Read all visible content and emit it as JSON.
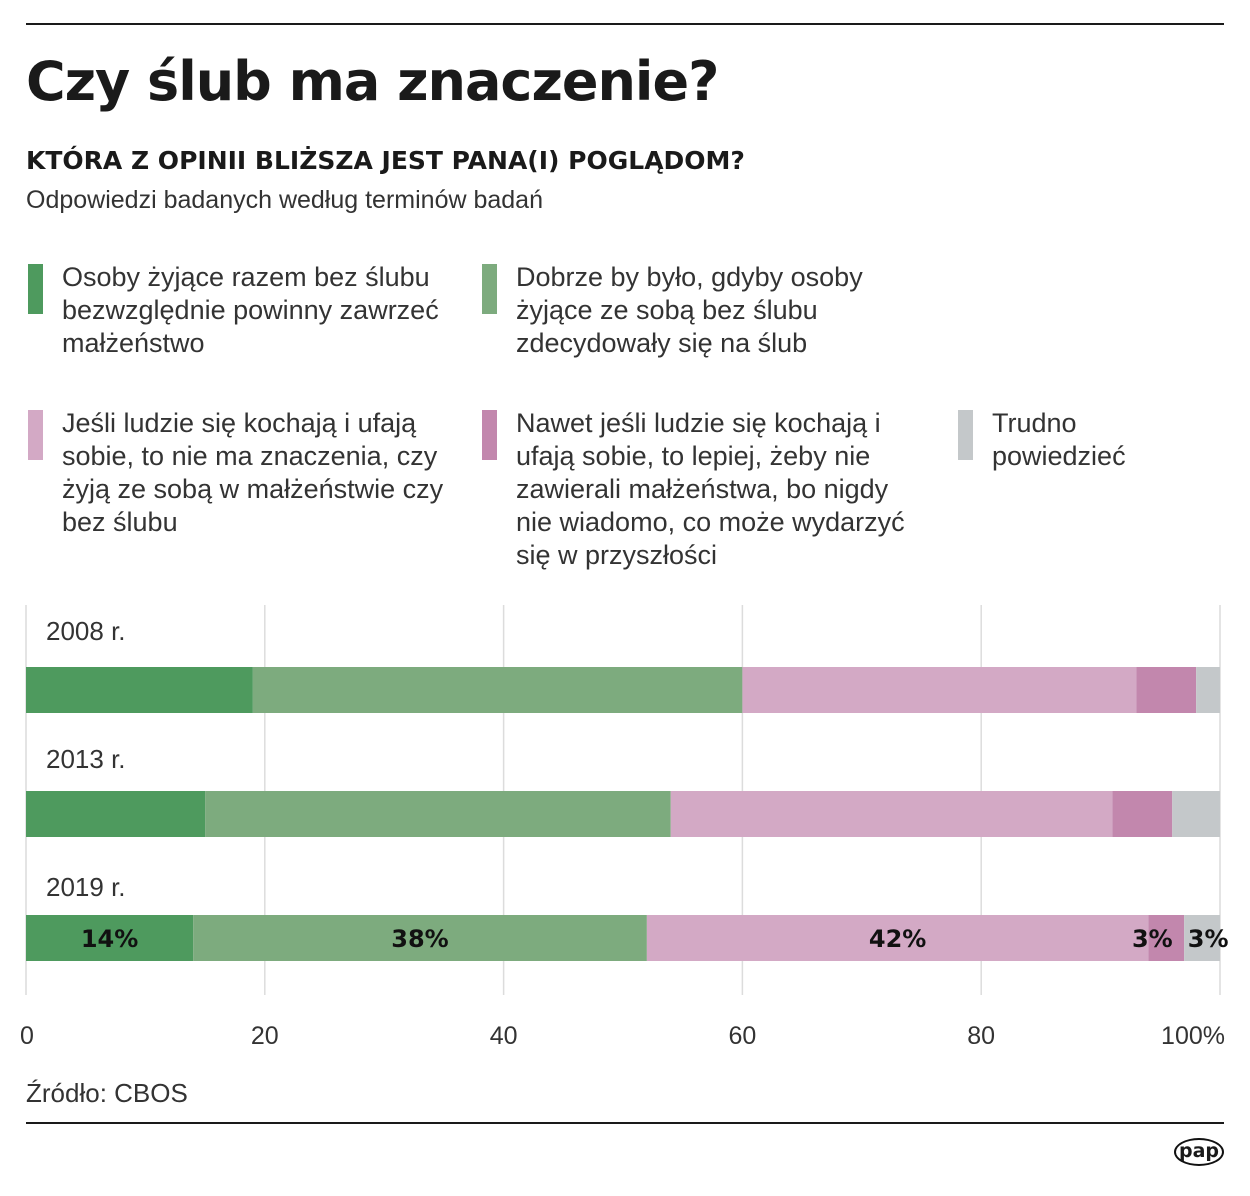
{
  "title": "Czy ślub ma znaczenie?",
  "subtitle": "KTÓRA Z OPINII BLIŻSZA JEST PANA(I) POGLĄDOM?",
  "description": "Odpowiedzi badanych według terminów badań",
  "legend": [
    {
      "label": "Osoby żyjące razem bez ślubu bezwzględnie powinny zawrzeć małżeństwo",
      "color": "#4e9a5e"
    },
    {
      "label": "Dobrze by było, gdyby osoby żyjące ze sobą bez ślubu zdecydowały się na ślub",
      "color": "#7dab7e"
    },
    {
      "label": "Jeśli ludzie się kochają i ufają sobie, to nie ma znaczenia, czy żyją ze sobą w małżeństwie czy bez ślubu",
      "color": "#d3a9c5"
    },
    {
      "label": "Nawet jeśli ludzie się kochają i ufają sobie, to lepiej, żeby nie zawierali małżeństwa, bo nigdy nie wiadomo, co może wydarzyć się w przyszłości",
      "color": "#c287ad"
    },
    {
      "label": "Trudno powiedzieć",
      "color": "#c4c8ca"
    }
  ],
  "chart_data": {
    "type": "bar",
    "orientation": "horizontal",
    "stacked": true,
    "categories": [
      "2008 r.",
      "2013 r.",
      "2019 r."
    ],
    "series": [
      {
        "name": "Osoby żyjące razem bez ślubu bezwzględnie powinny zawrzeć małżeństwo",
        "values": [
          19,
          15,
          14
        ]
      },
      {
        "name": "Dobrze by było, gdyby osoby żyjące ze sobą bez ślubu zdecydowały się na ślub",
        "values": [
          41,
          39,
          38
        ]
      },
      {
        "name": "Jeśli ludzie się kochają i ufają sobie, to nie ma znaczenia, czy żyją ze sobą w małżeństwie czy bez ślubu",
        "values": [
          33,
          37,
          42
        ]
      },
      {
        "name": "Nawet jeśli ludzie się kochają i ufają sobie, to lepiej, żeby nie zawierali małżeństwa, bo nigdy nie wiadomo, co może wydarzyć się w przyszłości",
        "values": [
          5,
          5,
          3
        ]
      },
      {
        "name": "Trudno powiedzieć",
        "values": [
          2,
          4,
          3
        ]
      }
    ],
    "data_labels": {
      "2019 r.": [
        "14%",
        "38%",
        "42%",
        "3%",
        "3%"
      ]
    },
    "xlim": [
      0,
      100
    ],
    "xticks": [
      "0",
      "20",
      "40",
      "60",
      "80",
      "100%"
    ],
    "grid": true,
    "legend_position": "top"
  },
  "source": "Źródło: CBOS",
  "logo": "pap"
}
